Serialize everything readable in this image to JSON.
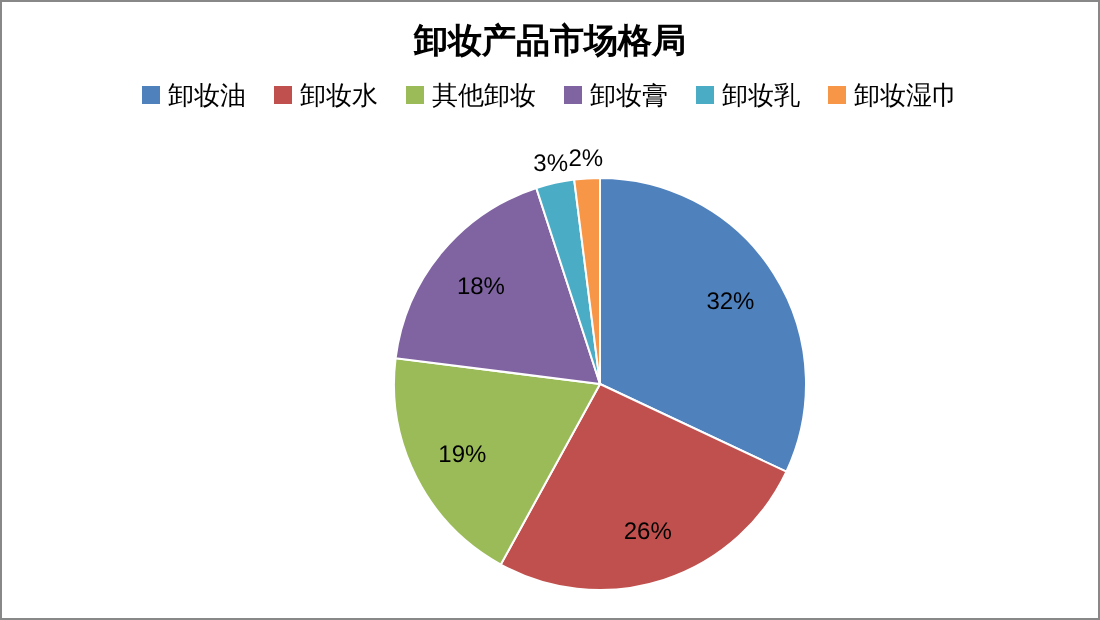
{
  "chart_data": {
    "type": "pie",
    "title": "卸妆产品市场格局",
    "categories": [
      "卸妆油",
      "卸妆水",
      "其他卸妆",
      "卸妆膏",
      "卸妆乳",
      "卸妆湿巾"
    ],
    "values": [
      32,
      26,
      19,
      18,
      3,
      2
    ],
    "colors": [
      "#4f81bd",
      "#c0504d",
      "#9bbb59",
      "#8064a2",
      "#4bacc6",
      "#f79646"
    ],
    "value_labels": [
      "32%",
      "26%",
      "19%",
      "18%",
      "3%",
      "2%"
    ],
    "legend": "top"
  }
}
